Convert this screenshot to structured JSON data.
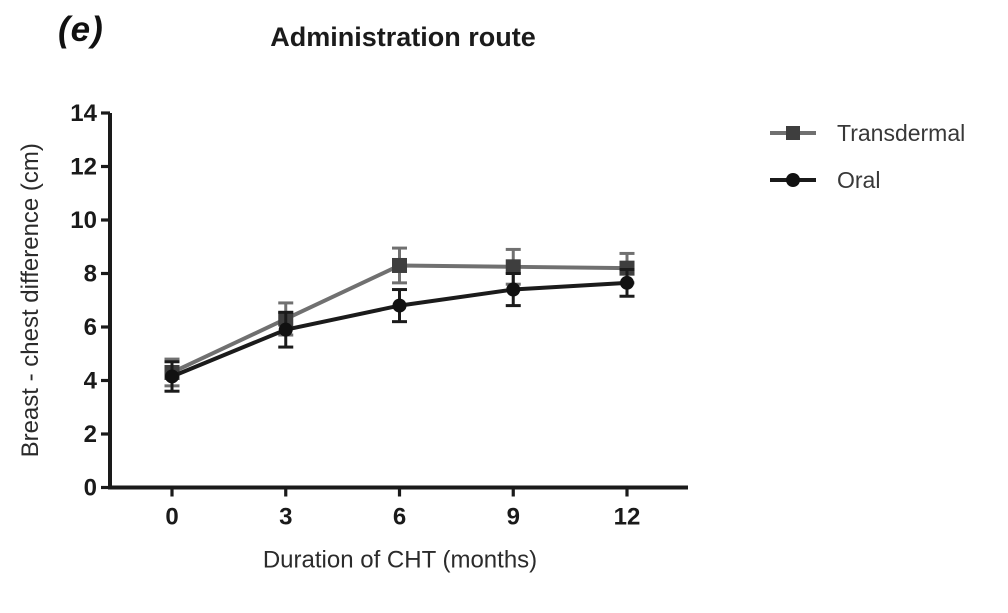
{
  "figure": {
    "panel_label": "(e)",
    "title": "Administration route"
  },
  "chart_data": {
    "type": "line",
    "title": "Administration route",
    "xlabel": "Duration of CHT (months)",
    "ylabel": "Breast - chest difference (cm)",
    "x": [
      0,
      3,
      6,
      9,
      12
    ],
    "xtick_labels": [
      "0",
      "3",
      "6",
      "9",
      "12"
    ],
    "ylim": [
      0,
      14
    ],
    "yticks": [
      0,
      2,
      4,
      6,
      8,
      10,
      12,
      14
    ],
    "grid": false,
    "legend_position": "right",
    "error_bars": true,
    "series": [
      {
        "name": "Transdermal",
        "marker": "square",
        "line_color": "#707070",
        "marker_color": "#3e3e3e",
        "values": [
          4.3,
          6.3,
          8.3,
          8.25,
          8.2
        ],
        "errors": [
          0.5,
          0.6,
          0.65,
          0.65,
          0.55
        ]
      },
      {
        "name": "Oral",
        "marker": "circle",
        "line_color": "#1b1b1b",
        "marker_color": "#111111",
        "values": [
          4.15,
          5.9,
          6.8,
          7.4,
          7.65
        ],
        "errors": [
          0.55,
          0.65,
          0.6,
          0.6,
          0.5
        ]
      }
    ],
    "axis_color": "#1a1a1a",
    "tick_label_color": "#1a1a1a",
    "axis_label_color": "#2b2b2b"
  }
}
